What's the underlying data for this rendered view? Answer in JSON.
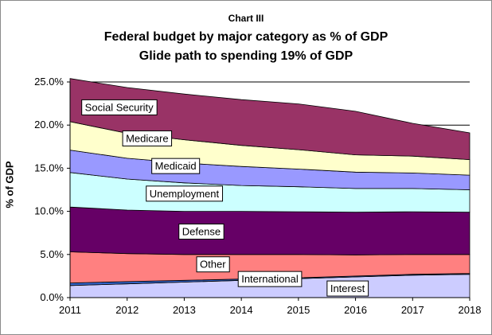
{
  "chart_data": {
    "type": "area",
    "chart_label": "Chart III",
    "title": "Federal budget by major category as % of GDP",
    "subtitle": "Glide path to spending 19% of GDP",
    "ylabel": "% of GDP",
    "xlabel": "",
    "x": [
      2011,
      2012,
      2013,
      2014,
      2015,
      2016,
      2017,
      2018
    ],
    "ylim": [
      0,
      25
    ],
    "yticks": [
      "0.0%",
      "5.0%",
      "10.0%",
      "15.0%",
      "20.0%",
      "25.0%"
    ],
    "gridlines_at": [
      20,
      25
    ],
    "stacking": "stacked",
    "series": [
      {
        "name": "Interest",
        "color": "#ccccff",
        "values": [
          1.4,
          1.6,
          1.8,
          2.0,
          2.2,
          2.4,
          2.6,
          2.7
        ]
      },
      {
        "name": "International",
        "color": "#3366cc",
        "values": [
          0.3,
          0.25,
          0.2,
          0.15,
          0.1,
          0.1,
          0.1,
          0.1
        ]
      },
      {
        "name": "Other",
        "color": "#ff8080",
        "values": [
          3.6,
          3.25,
          3.0,
          2.85,
          2.7,
          2.45,
          2.3,
          2.2
        ]
      },
      {
        "name": "Defense",
        "color": "#660066",
        "values": [
          5.2,
          5.05,
          5.0,
          5.0,
          4.95,
          4.95,
          4.95,
          4.9
        ]
      },
      {
        "name": "Unemployment",
        "color": "#ccffff",
        "values": [
          4.0,
          3.6,
          3.3,
          3.0,
          2.9,
          2.75,
          2.7,
          2.6
        ]
      },
      {
        "name": "Medicaid",
        "color": "#9999ff",
        "values": [
          2.6,
          2.4,
          2.3,
          2.2,
          2.05,
          1.9,
          1.8,
          1.7
        ]
      },
      {
        "name": "Medicare",
        "color": "#ffffcc",
        "values": [
          3.3,
          2.9,
          2.7,
          2.45,
          2.25,
          2.0,
          1.95,
          1.8
        ]
      },
      {
        "name": "Social Security",
        "color": "#993366",
        "values": [
          5.0,
          5.3,
          5.3,
          5.3,
          5.3,
          5.05,
          3.8,
          3.1
        ]
      }
    ],
    "annotations": [
      {
        "text": "Social Security",
        "series": "Social Security",
        "x": 2011.86,
        "y": 22.1
      },
      {
        "text": "Medicare",
        "series": "Medicare",
        "x": 2012.35,
        "y": 18.5
      },
      {
        "text": "Medicaid",
        "series": "Medicaid",
        "x": 2012.85,
        "y": 15.3
      },
      {
        "text": "Unemployment",
        "series": "Unemployment",
        "x": 2013.0,
        "y": 12.1
      },
      {
        "text": "Defense",
        "series": "Defense",
        "x": 2013.3,
        "y": 7.7
      },
      {
        "text": "Other",
        "series": "Other",
        "x": 2013.5,
        "y": 3.9
      },
      {
        "text": "International",
        "series": "International",
        "x": 2014.5,
        "y": 2.2
      },
      {
        "text": "Interest",
        "series": "Interest",
        "x": 2015.86,
        "y": 1.1
      }
    ]
  }
}
